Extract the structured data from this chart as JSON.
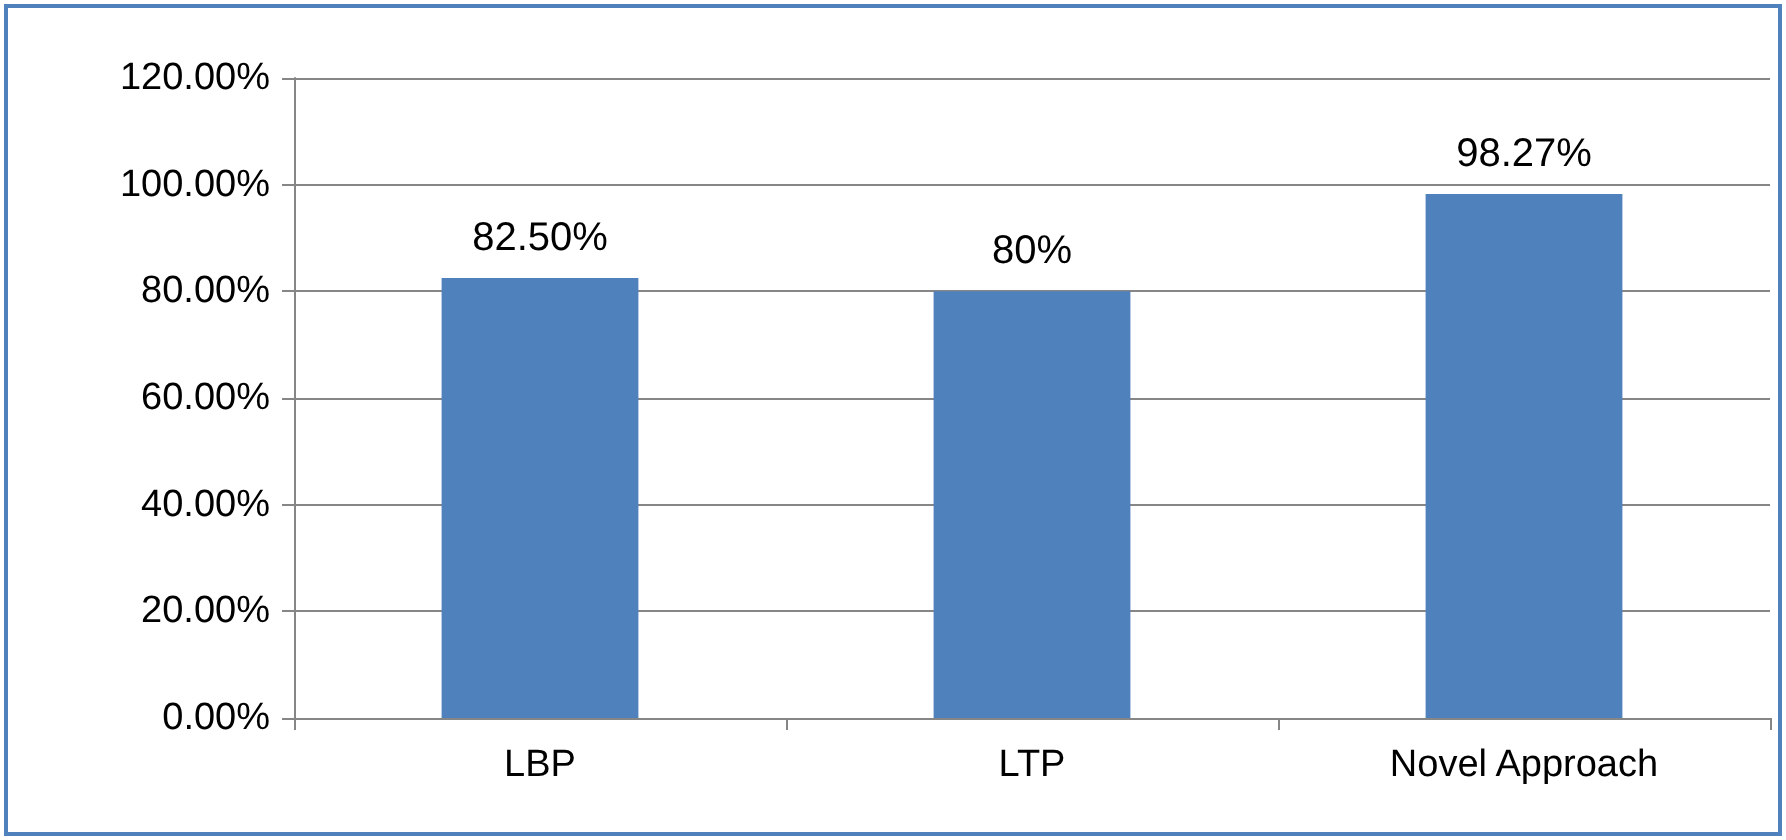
{
  "chart_data": {
    "type": "bar",
    "categories": [
      "LBP",
      "LTP",
      "Novel Approach"
    ],
    "values": [
      82.5,
      80,
      98.27
    ],
    "color": "#4f81bd",
    "value_labels": [
      "82.50%",
      "80%",
      "98.27%"
    ],
    "ylim": [
      0,
      120
    ],
    "yticks": [
      {
        "value": 0,
        "label": "0.00%"
      },
      {
        "value": 20,
        "label": "20.00%"
      },
      {
        "value": 40,
        "label": "40.00%"
      },
      {
        "value": 60,
        "label": "60.00%"
      },
      {
        "value": 80,
        "label": "80.00%"
      },
      {
        "value": 100,
        "label": "100.00%"
      },
      {
        "value": 120,
        "label": "120.00%"
      }
    ],
    "grid": "y"
  }
}
